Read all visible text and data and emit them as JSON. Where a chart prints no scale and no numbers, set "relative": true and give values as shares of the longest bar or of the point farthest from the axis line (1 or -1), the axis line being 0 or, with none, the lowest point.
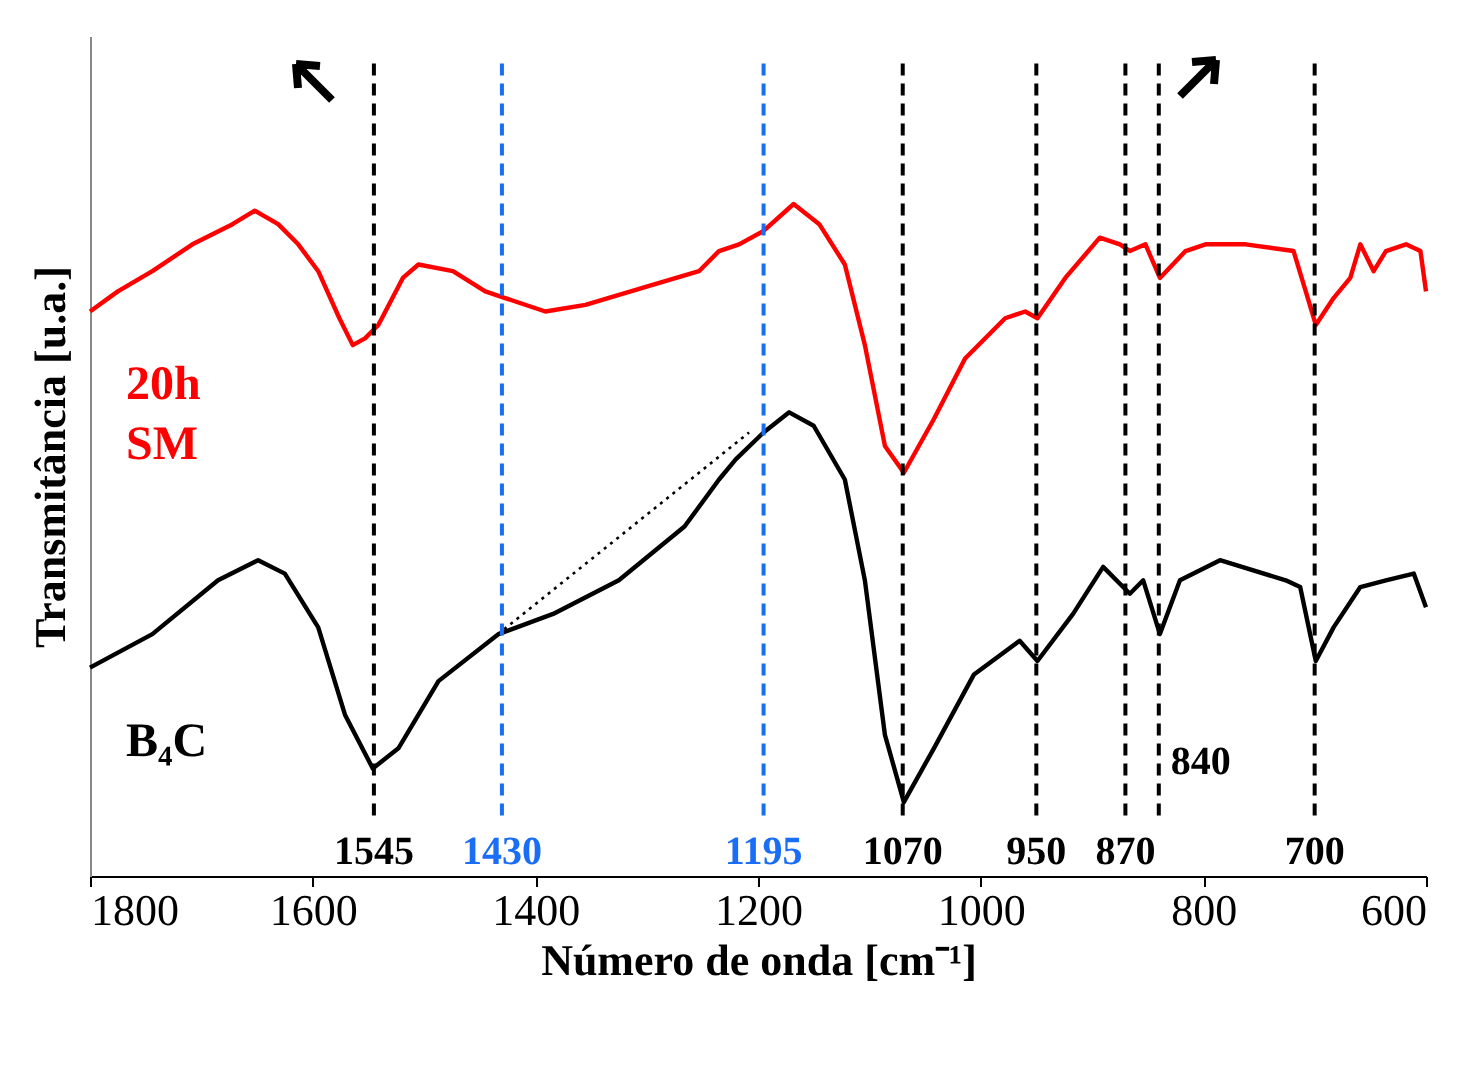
{
  "chart_data": {
    "type": "line",
    "relative": true,
    "xlabel": "Número de onda [cm⁻¹]",
    "ylabel": "Transmitância [u.a.]",
    "xlim": [
      1800,
      600
    ],
    "xticks": [
      1800,
      1600,
      1400,
      1200,
      1000,
      800,
      600
    ],
    "grid": false,
    "marker": "none",
    "series": [
      {
        "name": "20h SM",
        "color": "#ff0000",
        "x": [
          1800,
          1775,
          1744,
          1708,
          1672,
          1652,
          1631,
          1613,
          1595,
          1576,
          1564,
          1553,
          1541,
          1519,
          1505,
          1474,
          1445,
          1427,
          1391,
          1355,
          1294,
          1253,
          1235,
          1217,
          1195,
          1168,
          1145,
          1122,
          1104,
          1086,
          1069,
          1042,
          1014,
          978,
          960,
          949,
          924,
          893,
          875,
          866,
          852,
          839,
          816,
          798,
          762,
          719,
          708,
          699,
          683,
          668,
          659,
          647,
          636,
          618,
          605,
          600
        ],
        "values": [
          0.84,
          0.87,
          0.9,
          0.94,
          0.97,
          0.99,
          0.97,
          0.94,
          0.9,
          0.83,
          0.79,
          0.8,
          0.82,
          0.89,
          0.91,
          0.9,
          0.87,
          0.86,
          0.84,
          0.85,
          0.88,
          0.9,
          0.93,
          0.94,
          0.96,
          1.0,
          0.97,
          0.91,
          0.79,
          0.64,
          0.6,
          0.68,
          0.77,
          0.83,
          0.84,
          0.83,
          0.89,
          0.95,
          0.94,
          0.93,
          0.94,
          0.89,
          0.93,
          0.94,
          0.94,
          0.93,
          0.87,
          0.82,
          0.86,
          0.89,
          0.94,
          0.9,
          0.93,
          0.94,
          0.93,
          0.87
        ]
      },
      {
        "name": "B₄C",
        "color": "#000000",
        "x": [
          1800,
          1744,
          1685,
          1649,
          1625,
          1595,
          1571,
          1546,
          1523,
          1487,
          1433,
          1384,
          1325,
          1266,
          1235,
          1220,
          1195,
          1172,
          1150,
          1122,
          1104,
          1086,
          1069,
          1042,
          1006,
          965,
          949,
          917,
          890,
          866,
          854,
          839,
          821,
          785,
          726,
          713,
          699,
          683,
          659,
          636,
          611,
          600
        ],
        "values": [
          0.31,
          0.36,
          0.44,
          0.47,
          0.45,
          0.37,
          0.24,
          0.16,
          0.19,
          0.29,
          0.36,
          0.39,
          0.44,
          0.52,
          0.59,
          0.62,
          0.66,
          0.69,
          0.67,
          0.59,
          0.44,
          0.21,
          0.11,
          0.19,
          0.3,
          0.35,
          0.32,
          0.39,
          0.46,
          0.42,
          0.44,
          0.36,
          0.44,
          0.47,
          0.44,
          0.43,
          0.32,
          0.37,
          0.43,
          0.44,
          0.45,
          0.4
        ]
      },
      {
        "type": "line",
        "color": "#000000",
        "line_style": "dotted",
        "x": [
          1456,
          1208
        ],
        "values": [
          0.33,
          0.66
        ]
      }
    ],
    "ref_lines": [
      {
        "axis": "x",
        "value": 1545,
        "label": "1545",
        "color": "#000000",
        "line_style": "dashed"
      },
      {
        "axis": "x",
        "value": 1430,
        "label": "1430",
        "color": "#1a6ef5",
        "line_style": "dashed"
      },
      {
        "axis": "x",
        "value": 1195,
        "label": "1195",
        "color": "#1a6ef5",
        "line_style": "dashed"
      },
      {
        "axis": "x",
        "value": 1070,
        "label": "1070",
        "color": "#000000",
        "line_style": "dashed"
      },
      {
        "axis": "x",
        "value": 950,
        "label": "950",
        "color": "#000000",
        "line_style": "dashed"
      },
      {
        "axis": "x",
        "value": 870,
        "label": "870",
        "color": "#000000",
        "line_style": "dashed"
      },
      {
        "axis": "x",
        "value": 840,
        "label": "840",
        "color": "#000000",
        "line_style": "dashed"
      },
      {
        "axis": "x",
        "value": 700,
        "label": "700",
        "color": "#000000",
        "line_style": "dashed"
      }
    ]
  }
}
